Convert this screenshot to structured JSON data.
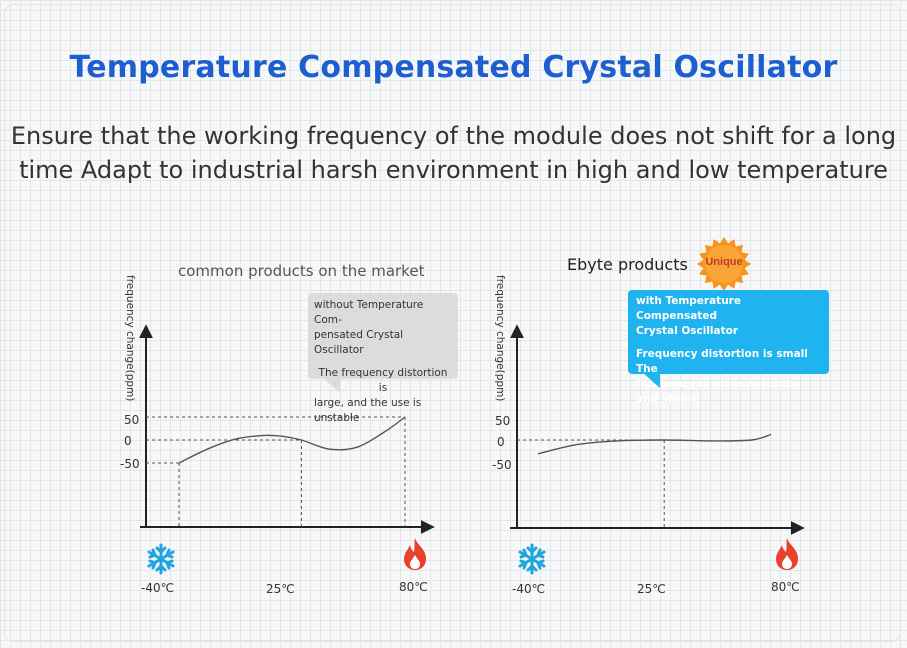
{
  "header": {
    "title": "Temperature Compensated Crystal Oscillator",
    "subtitle_line1": "Ensure that the working frequency of the module does not shift for a long",
    "subtitle_line2": "time Adapt to industrial harsh environment in high and low temperature"
  },
  "badge": {
    "label": "Unique",
    "color": "#f7941d"
  },
  "colors": {
    "title": "#1d5fcf",
    "callout_blue": "#1fb4ef",
    "callout_gray": "#dcdcdc",
    "snow": "#1fa6e0",
    "flame": "#e8412c"
  },
  "chart_data": [
    {
      "type": "line",
      "heading": "common products on the market",
      "ylabel": "frequency change(ppm)",
      "yticks": [
        "50",
        "0",
        "-50"
      ],
      "xticks": [
        "-40℃",
        "25℃",
        "80℃"
      ],
      "x": [
        -40,
        -25,
        -10,
        5,
        15,
        25,
        40,
        55,
        70,
        80
      ],
      "y": [
        -50,
        -20,
        2,
        10,
        8,
        0,
        -20,
        -15,
        20,
        50
      ],
      "ylim": [
        -150,
        150
      ],
      "xlim": [
        -50,
        95
      ],
      "icons": [
        "snowflake-icon",
        "flame-icon"
      ],
      "callout": {
        "line1": "without Temperature Com-",
        "line2": "pensated Crystal Oscillator",
        "line3": "The frequency distortion is",
        "line4": "large, and the use is unstable"
      }
    },
    {
      "type": "line",
      "heading": "Ebyte products",
      "ylabel": "frequency change(ppm)",
      "yticks": [
        "50",
        "0",
        "-50"
      ],
      "xticks": [
        "-40℃",
        "25℃",
        "80℃"
      ],
      "x": [
        -40,
        -20,
        0,
        25,
        50,
        70,
        80
      ],
      "y": [
        -30,
        -10,
        -2,
        0,
        -2,
        0,
        12
      ],
      "ylim": [
        -150,
        150
      ],
      "xlim": [
        -50,
        95
      ],
      "icons": [
        "snowflake-icon",
        "flame-icon"
      ],
      "callout": {
        "line1": "with Temperature Compensated",
        "line2": "Crystal Oscillator",
        "line3": "Frequency distortion is small The",
        "line4": "frequency is more accurate and stable"
      }
    }
  ]
}
